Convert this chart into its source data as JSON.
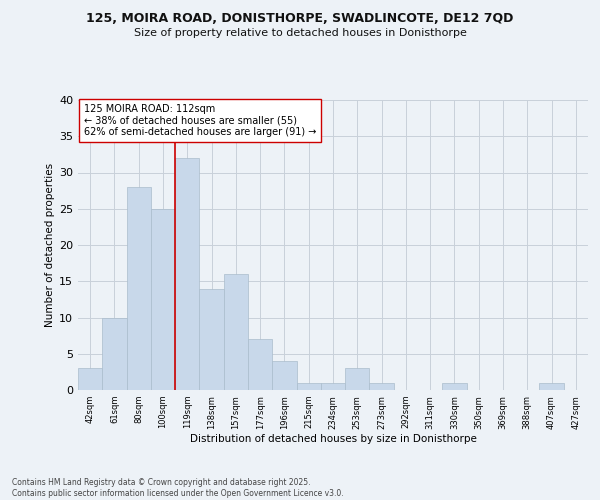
{
  "title1": "125, MOIRA ROAD, DONISTHORPE, SWADLINCOTE, DE12 7QD",
  "title2": "Size of property relative to detached houses in Donisthorpe",
  "xlabel": "Distribution of detached houses by size in Donisthorpe",
  "ylabel": "Number of detached properties",
  "footer1": "Contains HM Land Registry data © Crown copyright and database right 2025.",
  "footer2": "Contains public sector information licensed under the Open Government Licence v3.0.",
  "bins": [
    "42sqm",
    "61sqm",
    "80sqm",
    "100sqm",
    "119sqm",
    "138sqm",
    "157sqm",
    "177sqm",
    "196sqm",
    "215sqm",
    "234sqm",
    "253sqm",
    "273sqm",
    "292sqm",
    "311sqm",
    "330sqm",
    "350sqm",
    "369sqm",
    "388sqm",
    "407sqm",
    "427sqm"
  ],
  "values": [
    3,
    10,
    28,
    25,
    32,
    14,
    16,
    7,
    4,
    1,
    1,
    3,
    1,
    0,
    0,
    1,
    0,
    0,
    0,
    1,
    0
  ],
  "bar_color": "#c8d8ea",
  "bar_edge_color": "#aabccc",
  "grid_color": "#c8d0da",
  "bg_color": "#edf2f7",
  "annotation_text": "125 MOIRA ROAD: 112sqm\n← 38% of detached houses are smaller (55)\n62% of semi-detached houses are larger (91) →",
  "vline_color": "#cc0000",
  "vline_x": 3.5,
  "ylim": [
    0,
    40
  ],
  "yticks": [
    0,
    5,
    10,
    15,
    20,
    25,
    30,
    35,
    40
  ]
}
